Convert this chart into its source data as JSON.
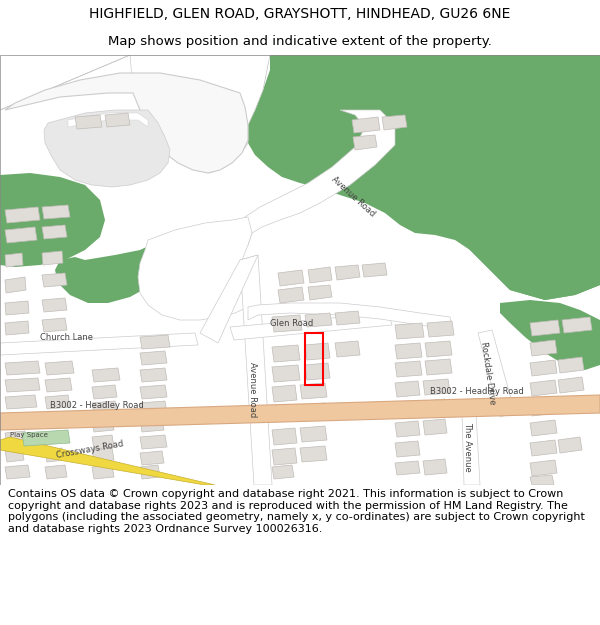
{
  "title_line1": "HIGHFIELD, GLEN ROAD, GRAYSHOTT, HINDHEAD, GU26 6NE",
  "title_line2": "Map shows position and indicative extent of the property.",
  "footer": "Contains OS data © Crown copyright and database right 2021. This information is subject to Crown copyright and database rights 2023 and is reproduced with the permission of HM Land Registry. The polygons (including the associated geometry, namely x, y co-ordinates) are subject to Crown copyright and database rights 2023 Ordnance Survey 100026316.",
  "map_bg": "#ffffff",
  "green_color": "#6aaa6a",
  "road_major_color": "#f0c8a0",
  "road_minor_color": "#ffffff",
  "road_outline_color": "#cccccc",
  "building_color": "#e0dcd8",
  "building_edge_color": "#c0bcb8",
  "property_color": "#ff0000",
  "yellow_road_color": "#f0d840",
  "playspace_color": "#b8d8b0",
  "title_fontsize": 10,
  "subtitle_fontsize": 9.5,
  "footer_fontsize": 8,
  "label_fontsize": 6,
  "label_color": "#444444"
}
